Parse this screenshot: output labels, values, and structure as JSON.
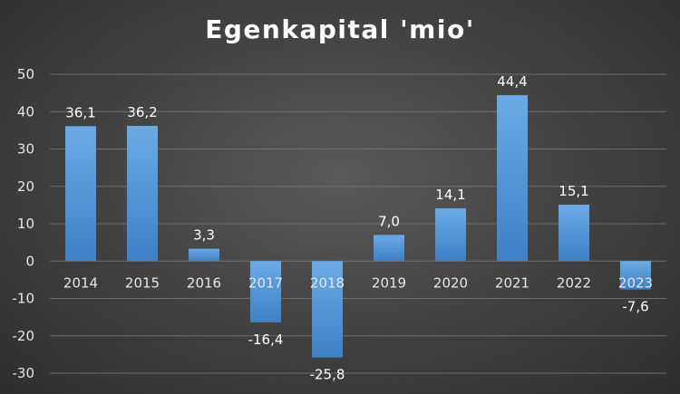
{
  "chart_data": {
    "type": "bar",
    "title": "Egenkapital 'mio'",
    "categories": [
      "2014",
      "2015",
      "2016",
      "2017",
      "2018",
      "2019",
      "2020",
      "2021",
      "2022",
      "2023"
    ],
    "values": [
      36.1,
      36.2,
      3.3,
      -16.4,
      -25.8,
      7.0,
      14.1,
      44.4,
      15.1,
      -7.6
    ],
    "data_labels": [
      "36,1",
      "36,2",
      "3,3",
      "-16,4",
      "-25,8",
      "7,0",
      "14,1",
      "44,4",
      "15,1",
      "-7,6"
    ],
    "yticks": [
      -30,
      -20,
      -10,
      0,
      10,
      20,
      30,
      40,
      50
    ],
    "ylim": [
      -30,
      50
    ],
    "xlabel": "",
    "ylabel": "",
    "grid": true,
    "legend": "none",
    "colors": {
      "bar_top": "#6aaae6",
      "bar_bottom": "#3f80c6",
      "grid": "#6e6e6e",
      "text": "#ffffff"
    }
  }
}
